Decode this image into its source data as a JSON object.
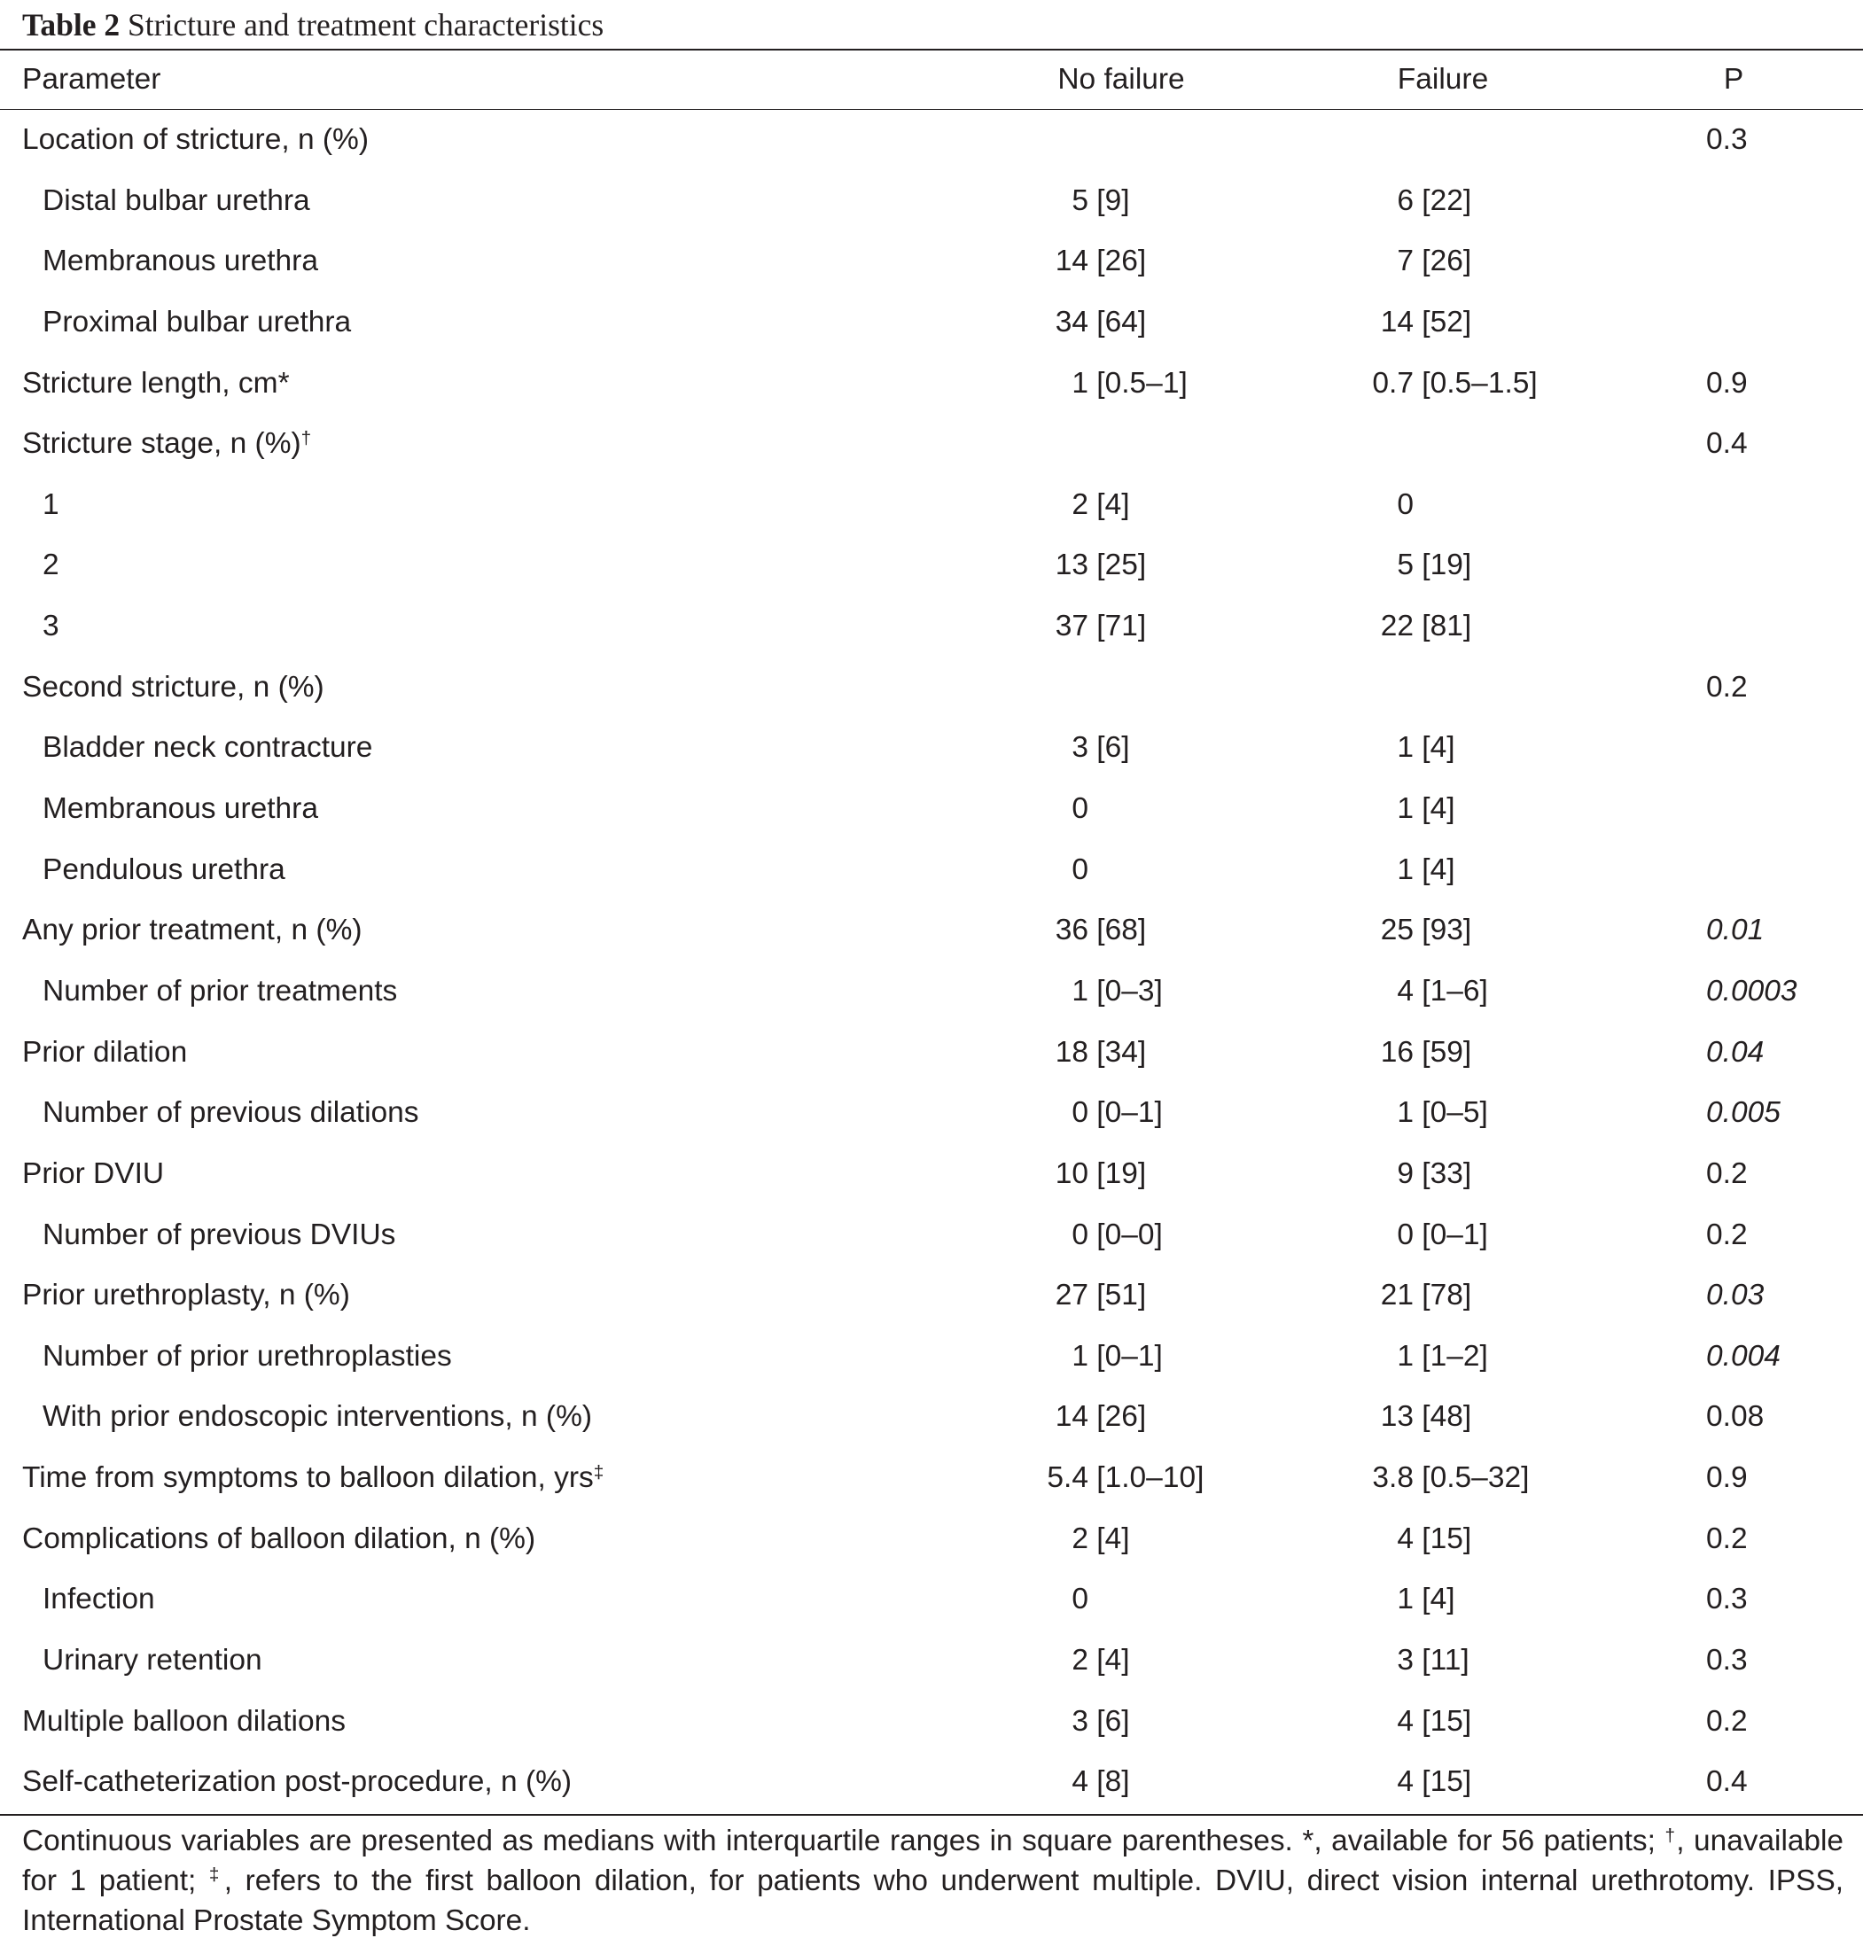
{
  "table": {
    "label": "Table 2",
    "title": "Stricture and treatment characteristics",
    "columns": [
      "Parameter",
      "No failure",
      "Failure",
      "P"
    ],
    "rows": [
      {
        "label": "Location of stricture, n (%)",
        "p": "0.3",
        "sub_rows": [
          {
            "label": "Distal bulbar urethra",
            "no_failure": "5 [9]",
            "failure": "6 [22]"
          },
          {
            "label": "Membranous urethra",
            "no_failure": "14 [26]",
            "failure": "7 [26]"
          },
          {
            "label": "Proximal bulbar urethra",
            "no_failure": "34 [64]",
            "failure": "14 [52]"
          }
        ]
      },
      {
        "label": "Stricture length, cm*",
        "no_failure": "1 [0.5–1]",
        "failure": "0.7 [0.5–1.5]",
        "p": "0.9"
      },
      {
        "label": "Stricture stage, n (%)†",
        "p": "0.4",
        "sub_rows": [
          {
            "label": "1",
            "no_failure": "2 [4]",
            "failure": "0"
          },
          {
            "label": "2",
            "no_failure": "13 [25]",
            "failure": "5 [19]"
          },
          {
            "label": "3",
            "no_failure": "37 [71]",
            "failure": "22 [81]"
          }
        ]
      },
      {
        "label": "Second stricture, n (%)",
        "p": "0.2",
        "sub_rows": [
          {
            "label": "Bladder neck contracture",
            "no_failure": "3 [6]",
            "failure": "1 [4]"
          },
          {
            "label": "Membranous urethra",
            "no_failure": "0",
            "failure": "1 [4]"
          },
          {
            "label": "Pendulous urethra",
            "no_failure": "0",
            "failure": "1 [4]"
          }
        ]
      },
      {
        "label": "Any prior treatment, n (%)",
        "no_failure": "36 [68]",
        "failure": "25 [93]",
        "p": "0.01",
        "p_italic": true,
        "sub_rows": [
          {
            "label": "Number of prior treatments",
            "no_failure": "1 [0–3]",
            "failure": "4 [1–6]",
            "p": "0.0003",
            "p_italic": true
          }
        ]
      },
      {
        "label": "Prior dilation",
        "no_failure": "18 [34]",
        "failure": "16 [59]",
        "p": "0.04",
        "p_italic": true,
        "sub_rows": [
          {
            "label": "Number of previous dilations",
            "no_failure": "0 [0–1]",
            "failure": "1 [0–5]",
            "p": "0.005",
            "p_italic": true
          }
        ]
      },
      {
        "label": "Prior DVIU",
        "no_failure": "10 [19]",
        "failure": "9 [33]",
        "p": "0.2",
        "sub_rows": [
          {
            "label": "Number of previous DVIUs",
            "no_failure": "0 [0–0]",
            "failure": "0 [0–1]",
            "p": "0.2"
          }
        ]
      },
      {
        "label": "Prior urethroplasty, n (%)",
        "no_failure": "27 [51]",
        "failure": "21 [78]",
        "p": "0.03",
        "p_italic": true,
        "sub_rows": [
          {
            "label": "Number of prior urethroplasties",
            "no_failure": "1 [0–1]",
            "failure": "1 [1–2]",
            "p": "0.004",
            "p_italic": true
          },
          {
            "label": "With prior endoscopic interventions, n (%)",
            "no_failure": "14 [26]",
            "failure": "13 [48]",
            "p": "0.08"
          }
        ]
      },
      {
        "label": "Time from symptoms to balloon dilation, yrs‡",
        "no_failure": "5.4 [1.0–10]",
        "failure": "3.8 [0.5–32]",
        "p": "0.9"
      },
      {
        "label": "Complications of balloon dilation, n (%)",
        "no_failure": "2 [4]",
        "failure": "4 [15]",
        "p": "0.2",
        "sub_rows": [
          {
            "label": "Infection",
            "no_failure": "0",
            "failure": "1 [4]",
            "p": "0.3"
          },
          {
            "label": "Urinary retention",
            "no_failure": "2 [4]",
            "failure": "3 [11]",
            "p": "0.3"
          }
        ]
      },
      {
        "label": "Multiple balloon dilations",
        "no_failure": "3 [6]",
        "failure": "4 [15]",
        "p": "0.2"
      },
      {
        "label": "Self-catheterization post-procedure, n (%)",
        "no_failure": "4 [8]",
        "failure": "4 [15]",
        "p": "0.4"
      }
    ],
    "footnote": "Continuous variables are presented as medians with interquartile ranges in square parentheses. *, available for 56 patients; †, unavailable for 1 patient; ‡, refers to the first balloon dilation, for patients who underwent multiple. DVIU, direct vision internal urethrotomy. IPSS, International Prostate Symptom Score."
  }
}
